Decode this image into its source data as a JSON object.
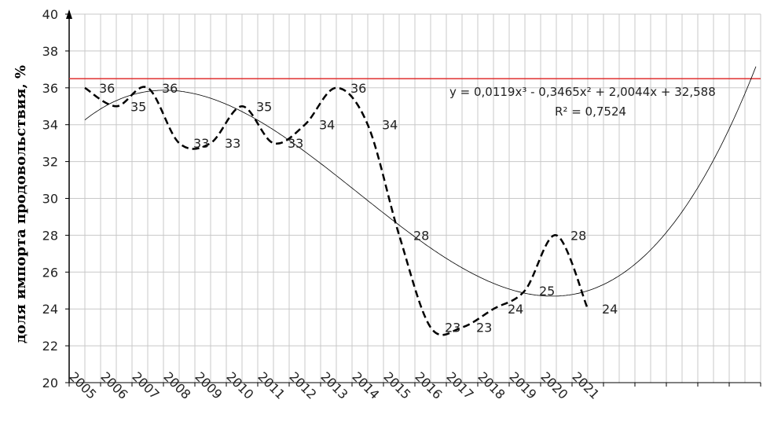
{
  "chart_data": {
    "type": "line",
    "y_label": "доля импорта продовольствия, %",
    "categories": [
      "2005",
      "2006",
      "2007",
      "2008",
      "2009",
      "2010",
      "2011",
      "2012",
      "2013",
      "2014",
      "2015",
      "2016",
      "2017",
      "2018",
      "2019",
      "2020",
      "2021",
      null,
      null,
      null,
      null,
      null
    ],
    "series": [
      {
        "name": "доля импорта продовольствия",
        "color": "#000000",
        "values": [
          36,
          35,
          36,
          33,
          33,
          35,
          33,
          34,
          36,
          34,
          28,
          23,
          23,
          24,
          25,
          28,
          24,
          null,
          null,
          null,
          null,
          null
        ]
      }
    ],
    "ylim": [
      20,
      40
    ],
    "yticks": [
      20,
      22,
      24,
      26,
      28,
      30,
      32,
      34,
      36,
      38,
      40
    ],
    "grid": true,
    "reference_line": {
      "value": 36.5,
      "color": "#e03030"
    },
    "trendline": {
      "degree": 3,
      "coefficients": [
        0.0119,
        -0.3465,
        2.0044,
        32.588
      ],
      "equation": "y = 0,0119x³ - 0,3465x² + 2,0044x + 32,588",
      "r2": "R² = 0,7524"
    }
  }
}
